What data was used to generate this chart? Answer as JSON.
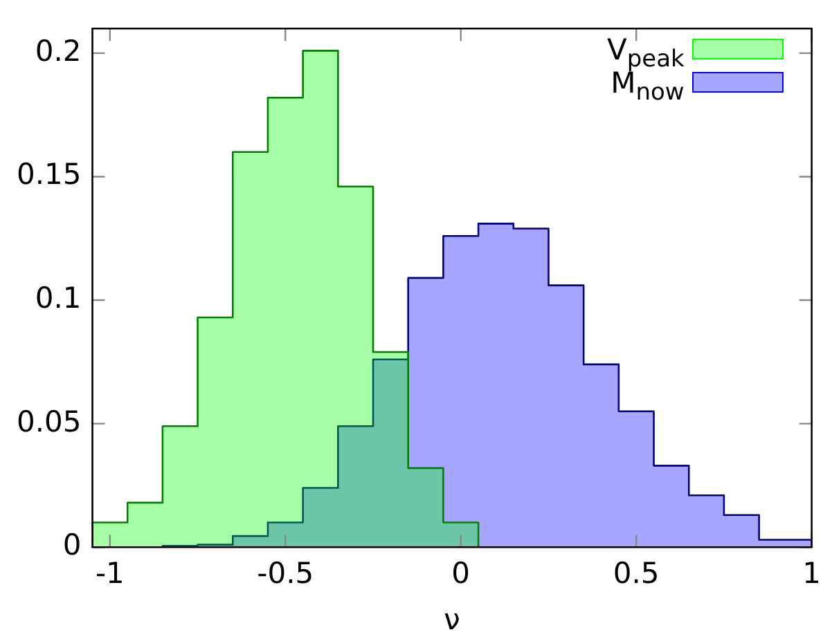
{
  "chart_data": {
    "type": "histogram",
    "xlabel": "ν",
    "bins": [
      -1.05,
      -0.95,
      -0.85,
      -0.75,
      -0.65,
      -0.55,
      -0.45,
      -0.35,
      -0.25,
      -0.15,
      -0.05,
      0.05,
      0.15,
      0.25,
      0.35,
      0.45,
      0.55,
      0.65,
      0.75,
      0.85,
      0.95,
      1.0
    ],
    "series": [
      {
        "name": "V$_{peak}$",
        "color": "#00ff00",
        "values": [
          0.01,
          0.018,
          0.049,
          0.093,
          0.16,
          0.182,
          0.201,
          0.146,
          0.079,
          0.032,
          0.01,
          0,
          0,
          0,
          0,
          0,
          0,
          0,
          0,
          0,
          0
        ]
      },
      {
        "name": "M$_{now}$",
        "color": "#0000ff",
        "values": [
          0,
          0,
          0.0005,
          0.001,
          0.0045,
          0.01,
          0.024,
          0.049,
          0.076,
          0.109,
          0.126,
          0.131,
          0.129,
          0.106,
          0.074,
          0.055,
          0.033,
          0.021,
          0.013,
          0.003,
          0.003
        ]
      }
    ],
    "xlim": [
      -1.05,
      1.0
    ],
    "ylim": [
      0,
      0.21
    ],
    "xticks": [
      -1,
      -0.5,
      0,
      0.5,
      1
    ],
    "yticks": [
      0,
      0.05,
      0.1,
      0.15,
      0.2
    ],
    "grid": false,
    "legend": "top right"
  }
}
